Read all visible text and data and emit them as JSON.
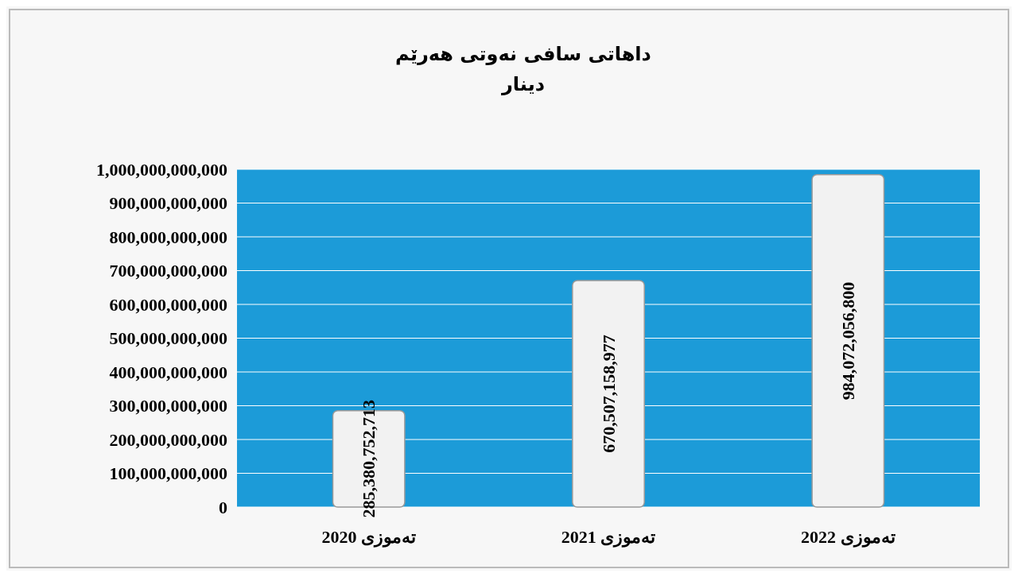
{
  "chart_data": {
    "type": "bar",
    "title": "داهاتی سافی نەوتی هەرێم",
    "subtitle": "دینار",
    "categories": [
      "تەموزی 2020",
      "تەموزی 2021",
      "تەموزی 2022"
    ],
    "values": [
      285380752713,
      670507158977,
      984072056800
    ],
    "color": "#f2f2f2",
    "ylim": [
      0,
      1000000000000
    ],
    "yticks": [
      {
        "value": 0,
        "label": "0"
      },
      {
        "value": 100000000000,
        "label": "100,000,000,000"
      },
      {
        "value": 200000000000,
        "label": "200,000,000,000"
      },
      {
        "value": 300000000000,
        "label": "300,000,000,000"
      },
      {
        "value": 400000000000,
        "label": "400,000,000,000"
      },
      {
        "value": 500000000000,
        "label": "500,000,000,000"
      },
      {
        "value": 600000000000,
        "label": "600,000,000,000"
      },
      {
        "value": 700000000000,
        "label": "700,000,000,000"
      },
      {
        "value": 800000000000,
        "label": "800,000,000,000"
      },
      {
        "value": 900000000000,
        "label": "900,000,000,000"
      },
      {
        "value": 1000000000000,
        "label": "1,000,000,000,000"
      }
    ],
    "value_labels": [
      "285,380,752,713",
      "670,507,158,977",
      "984,072,056,800"
    ],
    "grid": "y"
  }
}
